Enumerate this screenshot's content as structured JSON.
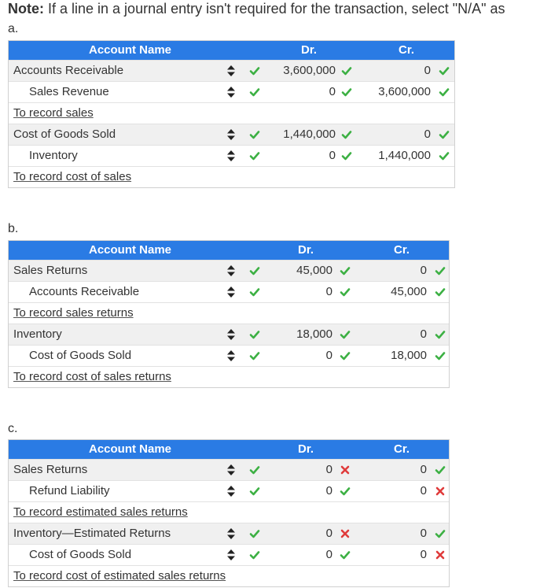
{
  "note": {
    "prefix": "Note:",
    "text": " If a line in a journal entry isn't required for the transaction, select \"N/A\" as"
  },
  "headers": {
    "account": "Account Name",
    "dr": "Dr.",
    "cr": "Cr."
  },
  "colors": {
    "header": "#2a7be4",
    "correct": "#3cb043",
    "incorrect": "#e03b3b"
  },
  "sections": [
    {
      "label": "a.",
      "rows": [
        {
          "type": "entry",
          "account": "Accounts Receivable",
          "indent": false,
          "dr": "3,600,000",
          "dr_mark": "check",
          "cr": "0",
          "cr_mark": "check"
        },
        {
          "type": "entry",
          "account": "Sales Revenue",
          "indent": true,
          "dr": "0",
          "dr_mark": "check",
          "cr": "3,600,000",
          "cr_mark": "check"
        },
        {
          "type": "memo",
          "text": "To record sales"
        },
        {
          "type": "entry",
          "account": "Cost of Goods Sold",
          "indent": false,
          "dr": "1,440,000",
          "dr_mark": "check",
          "cr": "0",
          "cr_mark": "check"
        },
        {
          "type": "entry",
          "account": "Inventory",
          "indent": true,
          "dr": "0",
          "dr_mark": "check",
          "cr": "1,440,000",
          "cr_mark": "check"
        },
        {
          "type": "memo",
          "text": "To record cost of sales"
        }
      ]
    },
    {
      "label": "b.",
      "rows": [
        {
          "type": "entry",
          "account": "Sales Returns",
          "indent": false,
          "dr": "45,000",
          "dr_mark": "check",
          "cr": "0",
          "cr_mark": "check"
        },
        {
          "type": "entry",
          "account": "Accounts Receivable",
          "indent": true,
          "dr": "0",
          "dr_mark": "check",
          "cr": "45,000",
          "cr_mark": "check"
        },
        {
          "type": "memo",
          "text": "To record sales returns"
        },
        {
          "type": "entry",
          "account": "Inventory",
          "indent": false,
          "dr": "18,000",
          "dr_mark": "check",
          "cr": "0",
          "cr_mark": "check"
        },
        {
          "type": "entry",
          "account": "Cost of Goods Sold",
          "indent": true,
          "dr": "0",
          "dr_mark": "check",
          "cr": "18,000",
          "cr_mark": "check"
        },
        {
          "type": "memo",
          "text": "To record cost of sales returns"
        }
      ]
    },
    {
      "label": "c.",
      "rows": [
        {
          "type": "entry",
          "account": "Sales Returns",
          "indent": false,
          "dr": "0",
          "dr_mark": "cross",
          "cr": "0",
          "cr_mark": "check"
        },
        {
          "type": "entry",
          "account": "Refund Liability",
          "indent": true,
          "dr": "0",
          "dr_mark": "check",
          "cr": "0",
          "cr_mark": "cross"
        },
        {
          "type": "memo",
          "text": "To record estimated sales returns"
        },
        {
          "type": "entry",
          "account": "Inventory—Estimated Returns",
          "indent": false,
          "dr": "0",
          "dr_mark": "cross",
          "cr": "0",
          "cr_mark": "check"
        },
        {
          "type": "entry",
          "account": "Cost of Goods Sold",
          "indent": true,
          "dr": "0",
          "dr_mark": "check",
          "cr": "0",
          "cr_mark": "cross"
        },
        {
          "type": "memo",
          "text": "To record cost of estimated sales returns"
        }
      ]
    }
  ]
}
